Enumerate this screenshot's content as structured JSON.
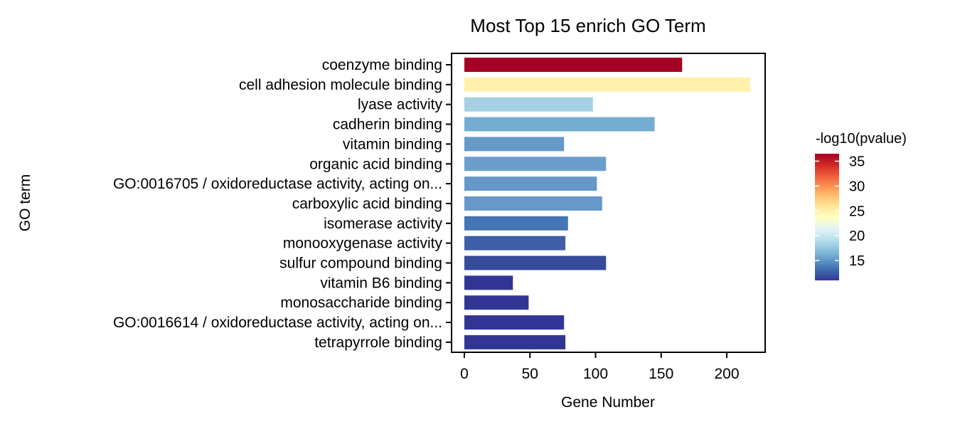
{
  "chart_data": {
    "type": "bar",
    "orientation": "horizontal",
    "title": "Most Top 15 enrich GO Term",
    "xlabel": "Gene Number",
    "ylabel": "GO term",
    "xlim": [
      0,
      218
    ],
    "x_ticks": [
      0,
      50,
      100,
      150,
      200
    ],
    "grid": false,
    "categories": [
      "coenzyme binding",
      "cell adhesion molecule binding",
      "lyase activity",
      "cadherin binding",
      "vitamin binding",
      "organic acid binding",
      "GO:0016705 / oxidoreductase activity, acting on...",
      "carboxylic acid binding",
      "isomerase activity",
      "monooxygenase activity",
      "sulfur compound binding",
      "vitamin B6 binding",
      "monosaccharide binding",
      "GO:0016614 / oxidoreductase activity, acting on...",
      "tetrapyrrole binding"
    ],
    "values": [
      166,
      218,
      98,
      145,
      76,
      108,
      101,
      105,
      79,
      77,
      108,
      37,
      49,
      76,
      77
    ],
    "colors": [
      "#a50026",
      "#fff1aa",
      "#a6d0e4",
      "#74add1",
      "#6599c8",
      "#6b9ecb",
      "#6598c8",
      "#6698c8",
      "#4575b4",
      "#3e5ea8",
      "#364b9a",
      "#313695",
      "#313695",
      "#313695",
      "#313695"
    ],
    "legend": {
      "title": "-log10(pvalue)",
      "position": "right",
      "ticks": [
        15,
        20,
        25,
        30,
        35
      ],
      "range": [
        11,
        36.5
      ],
      "palette": "RdYlBu",
      "stops": [
        "#313695",
        "#4575b4",
        "#74add1",
        "#abd9e9",
        "#e0f3f8",
        "#ffffbf",
        "#fee090",
        "#fdae61",
        "#f46d43",
        "#d73027",
        "#a50026"
      ]
    }
  }
}
